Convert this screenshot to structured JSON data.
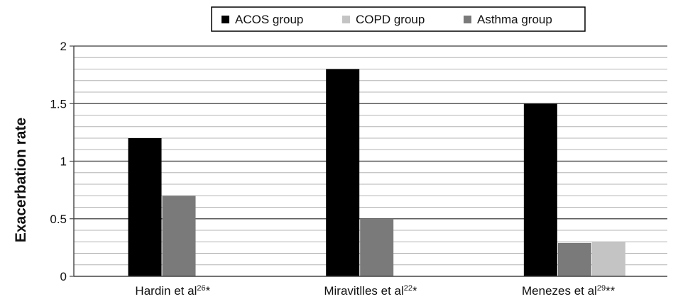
{
  "chart_data": {
    "type": "bar",
    "title": "",
    "xlabel": "",
    "ylabel": "Exacerbation rate",
    "ylim": [
      0,
      2
    ],
    "yticks": [
      0,
      0.5,
      1,
      1.5,
      2
    ],
    "ytick_labels": [
      "0",
      "0.5",
      "1",
      "1.5",
      "2"
    ],
    "minor_grid_step": 0.1,
    "grid": true,
    "legend_position": "top-center",
    "categories": [
      {
        "base": "Hardin et al",
        "sup": "26",
        "suffix": "*"
      },
      {
        "base": "Miravitlles et al",
        "sup": "22",
        "suffix": "*"
      },
      {
        "base": "Menezes et al",
        "sup": "29",
        "suffix": "**"
      }
    ],
    "series": [
      {
        "name": "ACOS group",
        "color": "#000000",
        "values": [
          1.2,
          1.8,
          1.5
        ]
      },
      {
        "name": "COPD group",
        "color": "#c4c4c4",
        "values": [
          0,
          0,
          0.3
        ]
      },
      {
        "name": "Asthma group",
        "color": "#7a7a7a",
        "values": [
          0.7,
          0.5,
          0.29
        ]
      }
    ],
    "bar_order": [
      0,
      2,
      1
    ]
  }
}
